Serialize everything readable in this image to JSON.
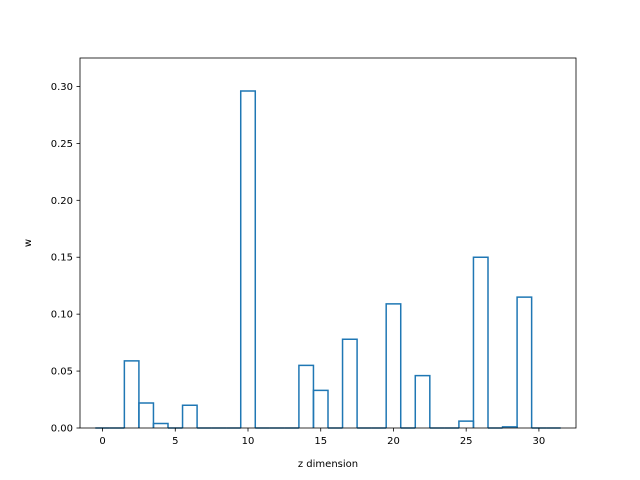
{
  "chart_data": {
    "type": "bar",
    "style": "step-outline",
    "xlabel": "z dimension",
    "ylabel": "w",
    "xlim": [
      -1.55,
      32.55
    ],
    "ylim": [
      0,
      0.325
    ],
    "xticks": [
      0,
      5,
      10,
      15,
      20,
      25,
      30
    ],
    "yticks": [
      0.0,
      0.05,
      0.1,
      0.15,
      0.2,
      0.25,
      0.3
    ],
    "ytick_labels": [
      "0.00",
      "0.05",
      "0.10",
      "0.15",
      "0.20",
      "0.25",
      "0.30"
    ],
    "line_color": "#1f77b4",
    "x": [
      0,
      1,
      2,
      3,
      4,
      5,
      6,
      7,
      8,
      9,
      10,
      11,
      12,
      13,
      14,
      15,
      16,
      17,
      18,
      19,
      20,
      21,
      22,
      23,
      24,
      25,
      26,
      27,
      28,
      29,
      30,
      31
    ],
    "values": [
      0,
      0,
      0.059,
      0.022,
      0.004,
      0,
      0.02,
      0,
      0,
      0,
      0.296,
      0,
      0,
      0,
      0.055,
      0.033,
      0,
      0.078,
      0,
      0,
      0.109,
      0,
      0.046,
      0,
      0,
      0.006,
      0.15,
      0,
      0.001,
      0.115,
      0,
      0
    ],
    "grid": false
  }
}
